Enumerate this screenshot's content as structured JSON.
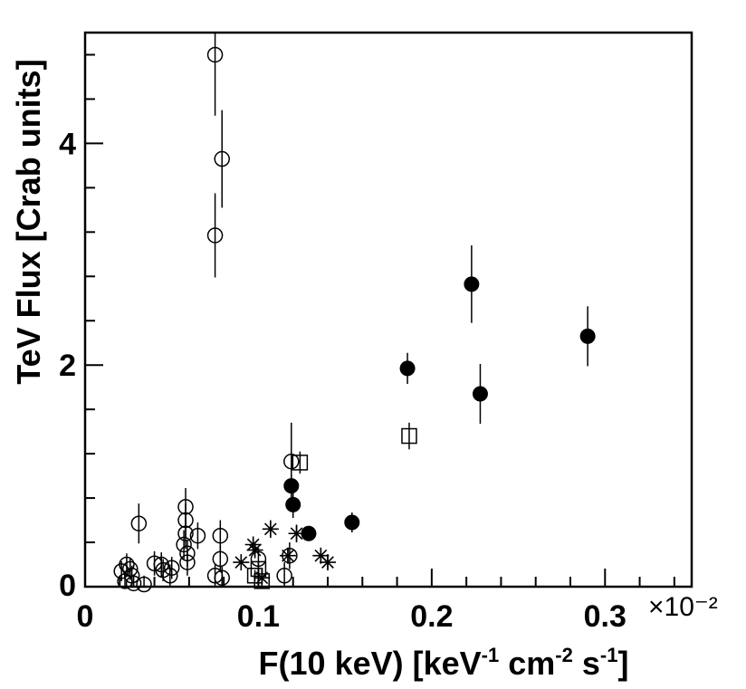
{
  "chart_data": {
    "type": "scatter",
    "title": "",
    "xlabel": {
      "main": "F(10 keV) [keV",
      "sup1": "-1",
      "mid1": " cm",
      "sup2": "-2",
      "mid2": " s",
      "sup3": "-1",
      "end": "]"
    },
    "ylabel": "TeV Flux [Crab units]",
    "xlim": [
      0,
      0.35
    ],
    "ylim": [
      0,
      5
    ],
    "x_multiplier": "×10⁻²",
    "x_ticks": [
      0,
      0.1,
      0.2,
      0.3
    ],
    "x_tick_labels": [
      "0",
      "0.1",
      "0.2",
      "0.3"
    ],
    "y_ticks": [
      0,
      2,
      4
    ],
    "y_tick_labels": [
      "0",
      "2",
      "4"
    ],
    "series": [
      {
        "name": "open-circles",
        "marker": "open-circle",
        "points": [
          {
            "x": 0.075,
            "y": 4.8,
            "err": 0.55
          },
          {
            "x": 0.079,
            "y": 3.86,
            "err": 0.44
          },
          {
            "x": 0.075,
            "y": 3.17,
            "err": 0.38
          },
          {
            "x": 0.031,
            "y": 0.57,
            "err": 0.18
          },
          {
            "x": 0.058,
            "y": 0.72,
            "err": 0.17
          },
          {
            "x": 0.058,
            "y": 0.6,
            "err": 0.15
          },
          {
            "x": 0.058,
            "y": 0.48,
            "err": 0.14
          },
          {
            "x": 0.057,
            "y": 0.38,
            "err": 0.13
          },
          {
            "x": 0.059,
            "y": 0.3,
            "err": 0.12
          },
          {
            "x": 0.059,
            "y": 0.22,
            "err": 0.12
          },
          {
            "x": 0.065,
            "y": 0.46,
            "err": 0.12
          },
          {
            "x": 0.078,
            "y": 0.46,
            "err": 0.14
          },
          {
            "x": 0.078,
            "y": 0.25,
            "err": 0.12
          },
          {
            "x": 0.075,
            "y": 0.1,
            "err": 0.1
          },
          {
            "x": 0.079,
            "y": 0.08,
            "err": 0.1
          },
          {
            "x": 0.04,
            "y": 0.21,
            "err": 0.11
          },
          {
            "x": 0.044,
            "y": 0.2,
            "err": 0.11
          },
          {
            "x": 0.045,
            "y": 0.15,
            "err": 0.1
          },
          {
            "x": 0.049,
            "y": 0.1,
            "err": 0.1
          },
          {
            "x": 0.05,
            "y": 0.17,
            "err": 0.1
          },
          {
            "x": 0.024,
            "y": 0.2,
            "err": 0.1
          },
          {
            "x": 0.026,
            "y": 0.16,
            "err": 0.1
          },
          {
            "x": 0.021,
            "y": 0.14,
            "err": 0.09
          },
          {
            "x": 0.027,
            "y": 0.1,
            "err": 0.09
          },
          {
            "x": 0.023,
            "y": 0.05,
            "err": 0.08
          },
          {
            "x": 0.028,
            "y": 0.03,
            "err": 0.08
          },
          {
            "x": 0.034,
            "y": 0.02,
            "err": 0.08
          },
          {
            "x": 0.119,
            "y": 1.13,
            "err": 0.35
          },
          {
            "x": 0.118,
            "y": 0.28,
            "err": 0.12
          },
          {
            "x": 0.115,
            "y": 0.1,
            "err": 0.12
          },
          {
            "x": 0.1,
            "y": 0.25,
            "err": 0.1
          }
        ]
      },
      {
        "name": "filled-circles",
        "marker": "filled-circle",
        "points": [
          {
            "x": 0.223,
            "y": 2.73,
            "err": 0.35
          },
          {
            "x": 0.29,
            "y": 2.26,
            "err": 0.27
          },
          {
            "x": 0.186,
            "y": 1.97,
            "err": 0.14
          },
          {
            "x": 0.228,
            "y": 1.74,
            "err": 0.27
          },
          {
            "x": 0.119,
            "y": 0.91,
            "err": 0.1
          },
          {
            "x": 0.12,
            "y": 0.74,
            "err": 0.12
          },
          {
            "x": 0.129,
            "y": 0.48,
            "err": 0.06
          },
          {
            "x": 0.154,
            "y": 0.58,
            "err": 0.09
          }
        ]
      },
      {
        "name": "open-squares",
        "marker": "open-square",
        "points": [
          {
            "x": 0.187,
            "y": 1.36,
            "err": 0.12
          },
          {
            "x": 0.124,
            "y": 1.12,
            "err": 0.1
          },
          {
            "x": 0.1,
            "y": 0.16,
            "err": 0.06
          },
          {
            "x": 0.098,
            "y": 0.1,
            "err": 0.05
          },
          {
            "x": 0.102,
            "y": 0.05,
            "err": 0.05
          }
        ]
      },
      {
        "name": "asterisks",
        "marker": "asterisk",
        "points": [
          {
            "x": 0.107,
            "y": 0.52,
            "err": 0.08
          },
          {
            "x": 0.122,
            "y": 0.48,
            "err": 0.08
          },
          {
            "x": 0.097,
            "y": 0.38,
            "err": 0.06
          },
          {
            "x": 0.098,
            "y": 0.33,
            "err": 0.06
          },
          {
            "x": 0.117,
            "y": 0.28,
            "err": 0.06
          },
          {
            "x": 0.136,
            "y": 0.28,
            "err": 0.06
          },
          {
            "x": 0.09,
            "y": 0.22,
            "err": 0.06
          },
          {
            "x": 0.14,
            "y": 0.22,
            "err": 0.06
          },
          {
            "x": 0.102,
            "y": 0.08,
            "err": 0.06
          }
        ]
      }
    ]
  }
}
